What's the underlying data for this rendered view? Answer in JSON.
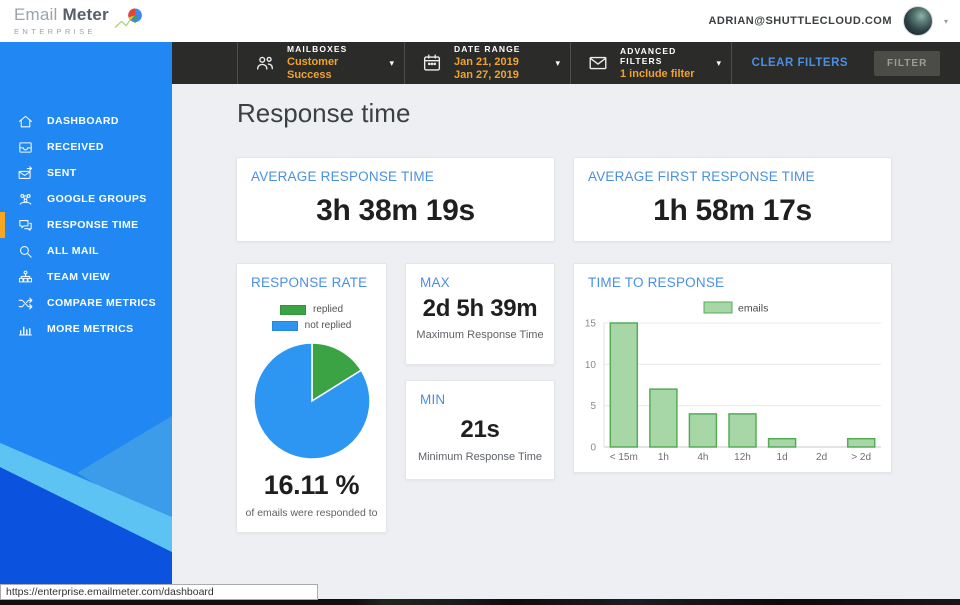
{
  "header": {
    "logo_text": "Email",
    "logo_text_bold": "Meter",
    "logo_subtitle": "ENTERPRISE",
    "user_email": "ADRIAN@SHUTTLECLOUD.COM"
  },
  "toolbar": {
    "mailboxes_label": "MAILBOXES",
    "mailboxes_value": "Customer Success",
    "date_range_label": "DATE RANGE",
    "date_from": "Jan 21, 2019",
    "date_to": "Jan 27, 2019",
    "advanced_filters_label": "ADVANCED FILTERS",
    "advanced_filters_value": "1 include filter",
    "clear_filters_label": "CLEAR FILTERS",
    "filter_button_label": "FILTER"
  },
  "sidebar": {
    "items": [
      {
        "label": "DASHBOARD",
        "icon": "home-icon",
        "active": false
      },
      {
        "label": "RECEIVED",
        "icon": "inbox-icon",
        "active": false
      },
      {
        "label": "SENT",
        "icon": "sent-icon",
        "active": false
      },
      {
        "label": "GOOGLE GROUPS",
        "icon": "groups-icon",
        "active": false
      },
      {
        "label": "RESPONSE TIME",
        "icon": "chat-icon",
        "active": true
      },
      {
        "label": "ALL MAIL",
        "icon": "search-icon",
        "active": false
      },
      {
        "label": "TEAM VIEW",
        "icon": "team-icon",
        "active": false
      },
      {
        "label": "COMPARE METRICS",
        "icon": "compare-icon",
        "active": false
      },
      {
        "label": "MORE METRICS",
        "icon": "metrics-icon",
        "active": false
      }
    ]
  },
  "main": {
    "title": "Response time",
    "cards": {
      "avg_response": {
        "header": "AVERAGE RESPONSE TIME",
        "value": "3h 38m 19s"
      },
      "avg_first_response": {
        "header": "AVERAGE FIRST RESPONSE TIME",
        "value": "1h 58m 17s"
      },
      "max": {
        "header": "MAX",
        "value": "2d 5h 39m",
        "caption": "Maximum Response Time"
      },
      "min": {
        "header": "MIN",
        "value": "21s",
        "caption": "Minimum Response Time"
      }
    }
  },
  "chart_data": [
    {
      "type": "pie",
      "title": "RESPONSE RATE",
      "labels": [
        "replied",
        "not replied"
      ],
      "values": [
        16.11,
        83.89
      ],
      "colors": [
        "#3ba344",
        "#2d96f3"
      ],
      "center_label": "16.11 %",
      "caption": "of emails were responded to",
      "legend_position": "top"
    },
    {
      "type": "bar",
      "title": "TIME TO RESPONSE",
      "categories": [
        "< 15m",
        "1h",
        "4h",
        "12h",
        "1d",
        "2d",
        "> 2d"
      ],
      "series": [
        {
          "name": "emails",
          "values": [
            15,
            7,
            4,
            4,
            1,
            0,
            1
          ]
        }
      ],
      "ylim": [
        0,
        15
      ],
      "yticks": [
        0,
        5,
        10,
        15
      ],
      "bar_fill": "#a7d7a7",
      "bar_border": "#57ab57",
      "grid": true,
      "legend_position": "top"
    }
  ],
  "status_bar": {
    "url": "https://enterprise.emailmeter.com/dashboard"
  },
  "colors": {
    "sidebar_blue": "#2187f2",
    "accent_orange": "#f5a623",
    "card_header_blue": "#4a90e2",
    "toolbar_dark": "#2b2b29",
    "pie_green": "#3ba344",
    "pie_blue": "#2d96f3"
  }
}
